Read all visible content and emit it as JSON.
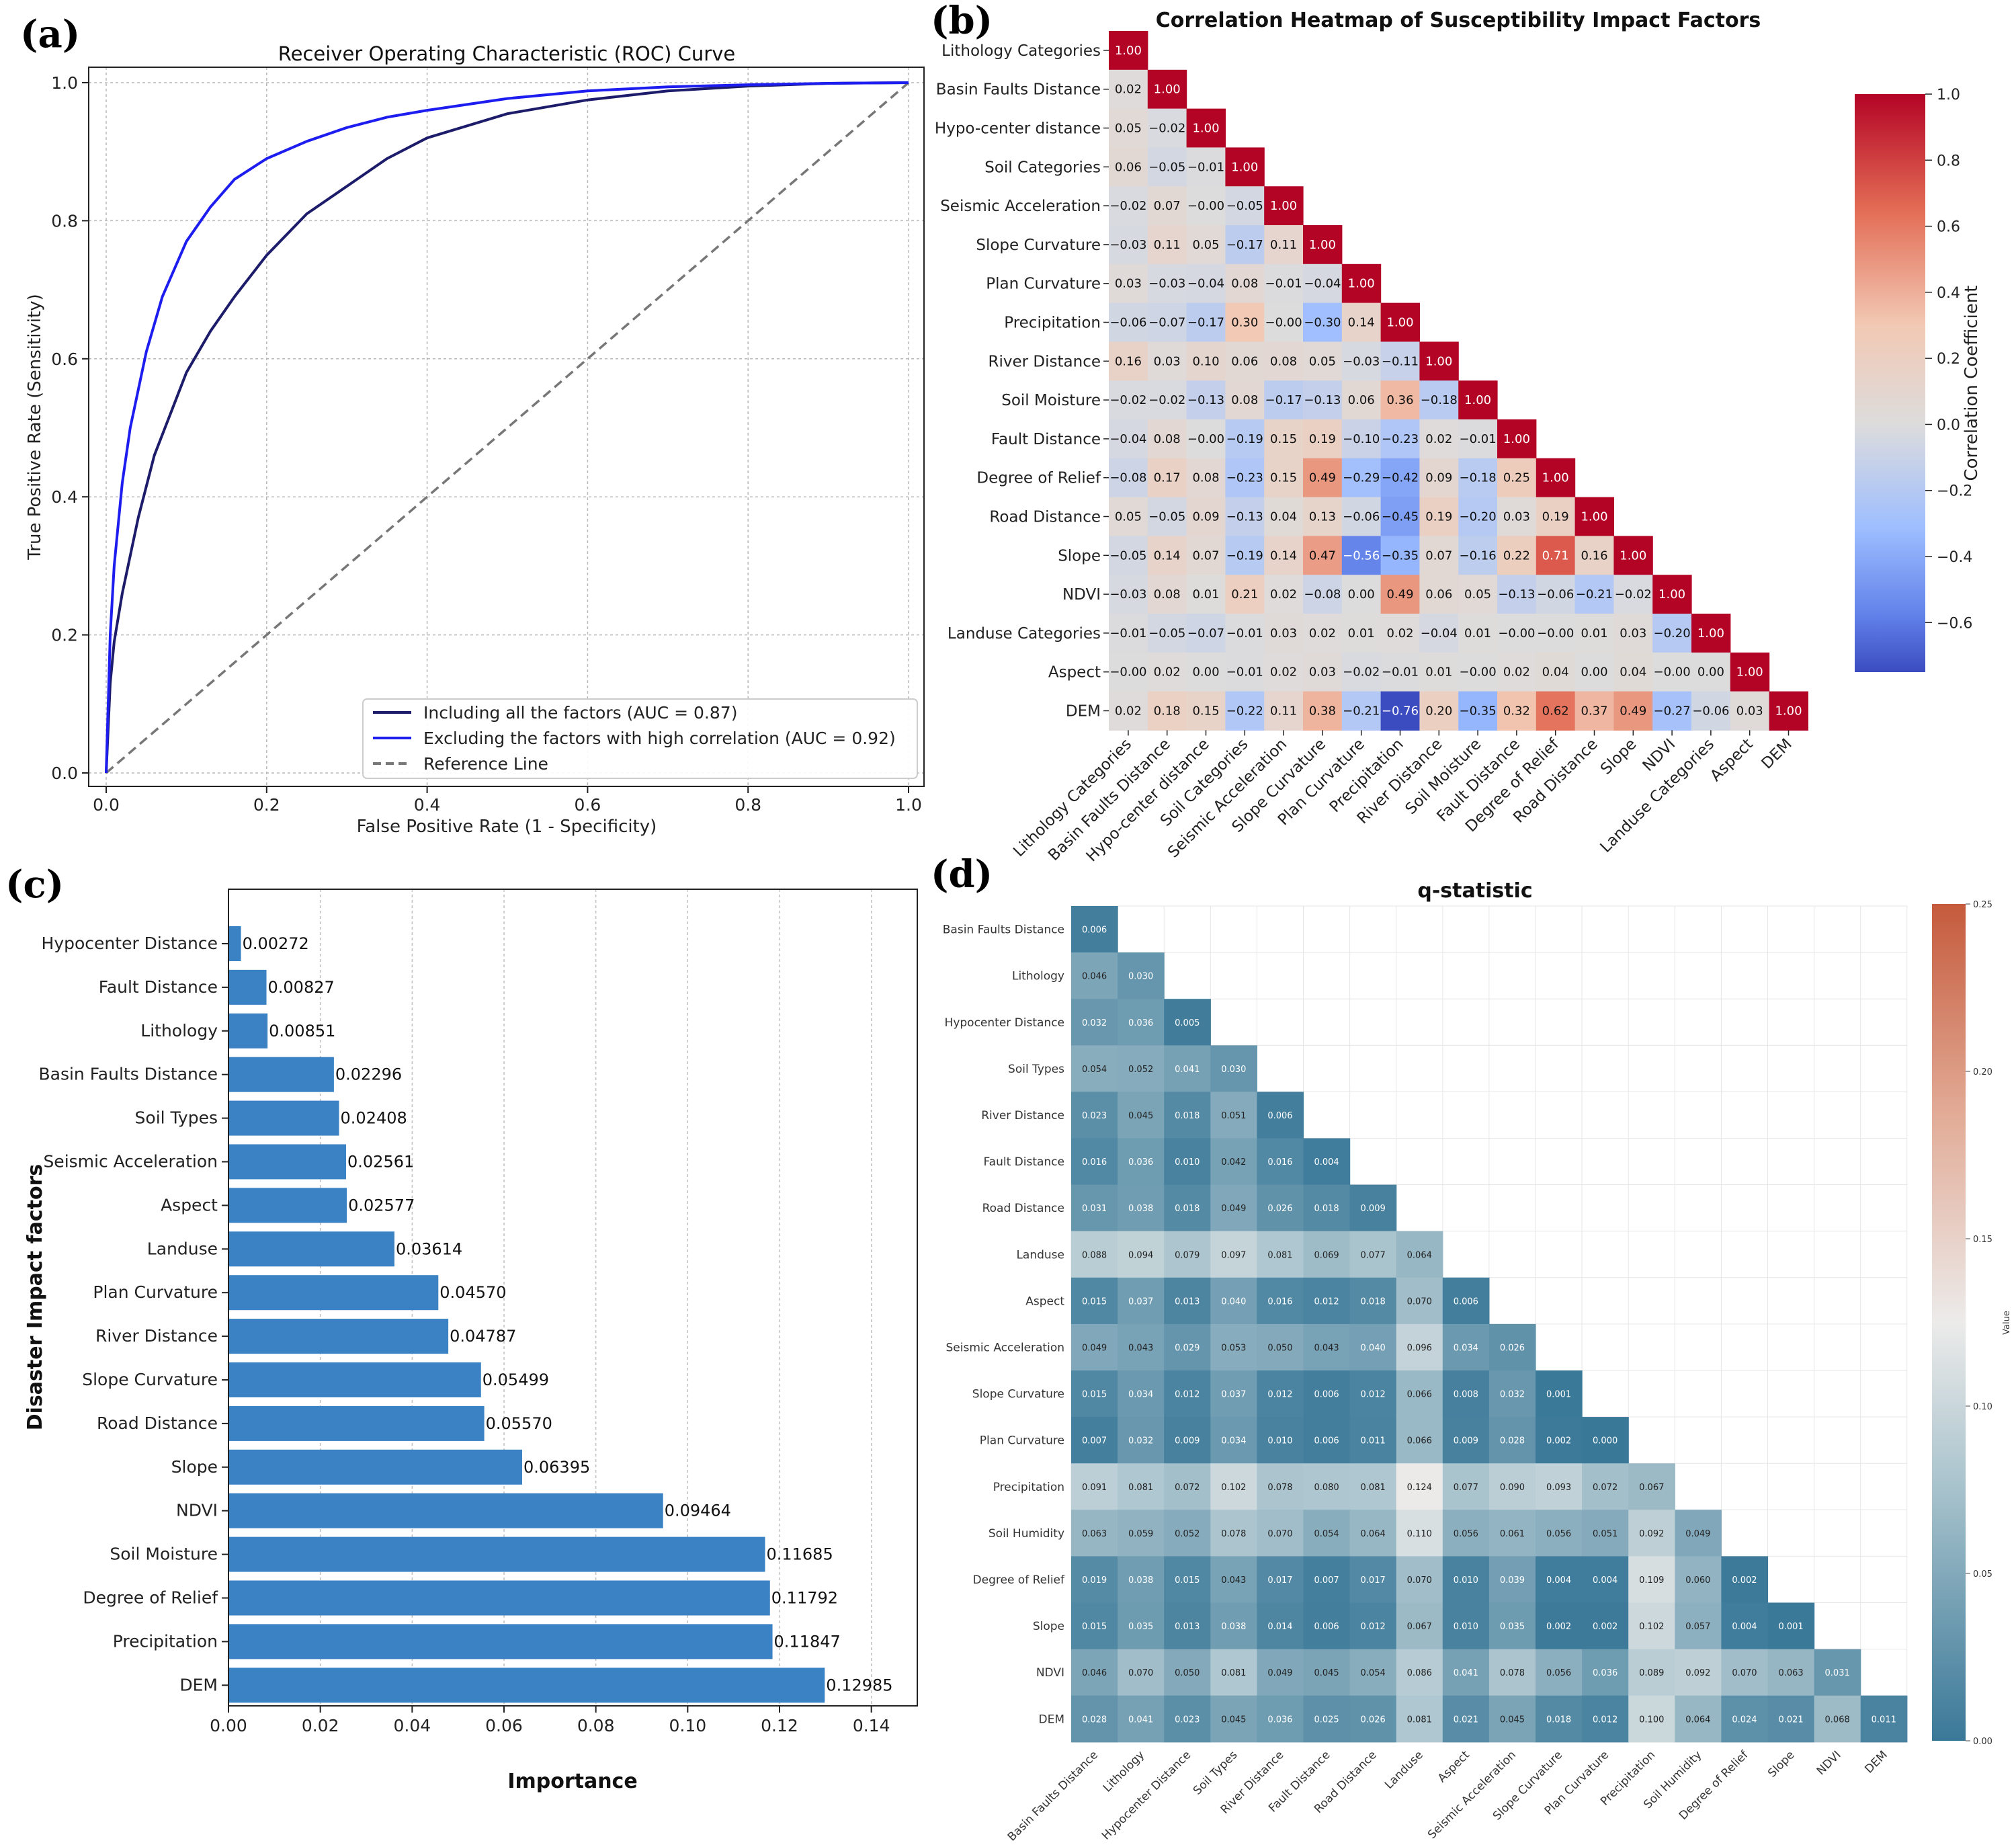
{
  "panels": {
    "a": "(a)",
    "b": "(b)",
    "c": "(c)",
    "d": "(d)"
  },
  "chart_data": [
    {
      "id": "a",
      "type": "line",
      "title": "Receiver Operating Characteristic (ROC) Curve",
      "xlabel": "False Positive Rate (1 - Specificity)",
      "ylabel": "True Positive Rate (Sensitivity)",
      "xlim": [
        0,
        1
      ],
      "ylim": [
        0,
        1
      ],
      "xticks": [
        "0.0",
        "0.2",
        "0.4",
        "0.6",
        "0.8",
        "1.0"
      ],
      "yticks": [
        "0.0",
        "0.2",
        "0.4",
        "0.6",
        "0.8",
        "1.0"
      ],
      "grid": true,
      "legend_position": "bottom-right",
      "series": [
        {
          "name": "Including all the factors (AUC = 0.87)",
          "color": "#1c1c6b",
          "dash": false,
          "x": [
            0,
            0.005,
            0.01,
            0.02,
            0.04,
            0.06,
            0.08,
            0.1,
            0.13,
            0.16,
            0.2,
            0.25,
            0.3,
            0.35,
            0.4,
            0.5,
            0.6,
            0.7,
            0.8,
            0.9,
            1.0
          ],
          "y": [
            0,
            0.13,
            0.19,
            0.26,
            0.37,
            0.46,
            0.52,
            0.58,
            0.64,
            0.69,
            0.75,
            0.81,
            0.85,
            0.89,
            0.92,
            0.955,
            0.975,
            0.988,
            0.995,
            0.999,
            1.0
          ]
        },
        {
          "name": "Excluding the factors with high correlation (AUC = 0.92)",
          "color": "#1d1df0",
          "dash": false,
          "x": [
            0,
            0.005,
            0.01,
            0.02,
            0.03,
            0.05,
            0.07,
            0.1,
            0.13,
            0.16,
            0.2,
            0.25,
            0.3,
            0.35,
            0.4,
            0.5,
            0.6,
            0.7,
            0.8,
            0.9,
            1.0
          ],
          "y": [
            0,
            0.2,
            0.3,
            0.42,
            0.5,
            0.61,
            0.69,
            0.77,
            0.82,
            0.86,
            0.89,
            0.915,
            0.935,
            0.95,
            0.96,
            0.977,
            0.988,
            0.994,
            0.997,
            0.999,
            1.0
          ]
        },
        {
          "name": "Reference Line",
          "color": "#777777",
          "dash": true,
          "x": [
            0,
            1
          ],
          "y": [
            0,
            1
          ]
        }
      ]
    },
    {
      "id": "b",
      "type": "heatmap",
      "title": "Correlation Heatmap of Susceptibility Impact Factors",
      "colorbar_label": "Correlation Coefficient",
      "vmin": -0.75,
      "vmax": 1.0,
      "colorbar_ticks": [
        "1.0",
        "0.8",
        "0.6",
        "0.4",
        "0.2",
        "0.0",
        "−0.2",
        "−0.4",
        "−0.6"
      ],
      "colorbar_tick_values": [
        1.0,
        0.8,
        0.6,
        0.4,
        0.2,
        0.0,
        -0.2,
        -0.4,
        -0.6
      ],
      "labels": [
        "Lithology Categories",
        "Basin Faults Distance",
        "Hypo-center distance",
        "Soil Categories",
        "Seismic Acceleration",
        "Slope Curvature",
        "Plan Curvature",
        "Precipitation",
        "River Distance",
        "Soil Moisture",
        "Fault Distance",
        "Degree of Relief",
        "Road Distance",
        "Slope",
        "NDVI",
        "Landuse Categories",
        "Aspect",
        "DEM"
      ],
      "values": [
        [
          1.0
        ],
        [
          0.02,
          1.0
        ],
        [
          0.05,
          -0.02,
          1.0
        ],
        [
          0.06,
          -0.05,
          -0.01,
          1.0
        ],
        [
          -0.02,
          0.07,
          -0.0,
          -0.05,
          1.0
        ],
        [
          -0.03,
          0.11,
          0.05,
          -0.17,
          0.11,
          1.0
        ],
        [
          0.03,
          -0.03,
          -0.04,
          0.08,
          -0.01,
          -0.04,
          1.0
        ],
        [
          -0.06,
          -0.07,
          -0.17,
          0.3,
          -0.0,
          -0.3,
          0.14,
          1.0
        ],
        [
          0.16,
          0.03,
          0.1,
          0.06,
          0.08,
          0.05,
          -0.03,
          -0.11,
          1.0
        ],
        [
          -0.02,
          -0.02,
          -0.13,
          0.08,
          -0.17,
          -0.13,
          0.06,
          0.36,
          -0.18,
          1.0
        ],
        [
          -0.04,
          0.08,
          -0.0,
          -0.19,
          0.15,
          0.19,
          -0.1,
          -0.23,
          0.02,
          -0.01,
          1.0
        ],
        [
          -0.08,
          0.17,
          0.08,
          -0.23,
          0.15,
          0.49,
          -0.29,
          -0.42,
          0.09,
          -0.18,
          0.25,
          1.0
        ],
        [
          0.05,
          -0.05,
          0.09,
          -0.13,
          0.04,
          0.13,
          -0.06,
          -0.45,
          0.19,
          -0.2,
          0.03,
          0.19,
          1.0
        ],
        [
          -0.05,
          0.14,
          0.07,
          -0.19,
          0.14,
          0.47,
          -0.56,
          -0.35,
          0.07,
          -0.16,
          0.22,
          0.71,
          0.16,
          1.0
        ],
        [
          -0.03,
          0.08,
          0.01,
          0.21,
          0.02,
          -0.08,
          0.0,
          0.49,
          0.06,
          0.05,
          -0.13,
          -0.06,
          -0.21,
          -0.02,
          1.0
        ],
        [
          -0.01,
          -0.05,
          -0.07,
          -0.01,
          0.03,
          0.02,
          0.01,
          0.02,
          -0.04,
          0.01,
          -0.0,
          -0.0,
          0.01,
          0.03,
          -0.2,
          1.0
        ],
        [
          -0.0,
          0.02,
          0.0,
          -0.01,
          0.02,
          0.03,
          -0.02,
          -0.01,
          0.01,
          -0.0,
          0.02,
          0.04,
          0.0,
          0.04,
          -0.0,
          0.0,
          1.0
        ],
        [
          0.02,
          0.18,
          0.15,
          -0.22,
          0.11,
          0.38,
          -0.21,
          -0.76,
          0.2,
          -0.35,
          0.32,
          0.62,
          0.37,
          0.49,
          -0.27,
          -0.06,
          0.03,
          1.0
        ]
      ]
    },
    {
      "id": "c",
      "type": "bar",
      "orientation": "horizontal",
      "xlabel": "Importance",
      "ylabel": "Disaster Impact factors",
      "xlim": [
        0,
        0.15
      ],
      "xticks": [
        "0.00",
        "0.02",
        "0.04",
        "0.06",
        "0.08",
        "0.10",
        "0.12",
        "0.14"
      ],
      "xtick_values": [
        0,
        0.02,
        0.04,
        0.06,
        0.08,
        0.1,
        0.12,
        0.14
      ],
      "grid": true,
      "bar_color": "#3a82c4",
      "categories": [
        "Hypocenter Distance",
        "Fault Distance",
        "Lithology",
        "Basin Faults Distance",
        "Soil Types",
        "Seismic Acceleration",
        "Aspect",
        "Landuse",
        "Plan Curvature",
        "River Distance",
        "Slope Curvature",
        "Road Distance",
        "Slope",
        "NDVI",
        "Soil Moisture",
        "Degree of Relief",
        "Precipitation",
        "DEM"
      ],
      "values": [
        0.00272,
        0.00827,
        0.00851,
        0.02296,
        0.02408,
        0.02561,
        0.02577,
        0.03614,
        0.0457,
        0.04787,
        0.05499,
        0.0557,
        0.06395,
        0.09464,
        0.11685,
        0.11792,
        0.11847,
        0.12985
      ],
      "value_labels": [
        "0.00272",
        "0.00827",
        "0.00851",
        "0.02296",
        "0.02408",
        "0.02561",
        "0.02577",
        "0.03614",
        "0.04570",
        "0.04787",
        "0.05499",
        "0.05570",
        "0.06395",
        "0.09464",
        "0.11685",
        "0.11792",
        "0.11847",
        "0.12985"
      ]
    },
    {
      "id": "d",
      "type": "heatmap",
      "title": "q-statistic",
      "colorbar_label": "Value",
      "vmin": 0.0,
      "vmax": 0.25,
      "colorbar_ticks": [
        "0.25",
        "0.20",
        "0.15",
        "0.10",
        "0.05",
        "0.00"
      ],
      "colorbar_tick_values": [
        0.25,
        0.2,
        0.15,
        0.1,
        0.05,
        0.0
      ],
      "labels": [
        "Basin Faults Distance",
        "Lithology",
        "Hypocenter Distance",
        "Soil Types",
        "River Distance",
        "Fault Distance",
        "Road Distance",
        "Landuse",
        "Aspect",
        "Seismic Acceleration",
        "Slope Curvature",
        "Plan Curvature",
        "Precipitation",
        "Soil Humidity",
        "Degree of Relief",
        "Slope",
        "NDVI",
        "DEM"
      ],
      "values": [
        [
          "0.006"
        ],
        [
          "0.046",
          "0.030"
        ],
        [
          "0.032",
          "0.036",
          "0.005"
        ],
        [
          "0.054",
          "0.052",
          "0.041",
          "0.030"
        ],
        [
          "0.023",
          "0.045",
          "0.018",
          "0.051",
          "0.006"
        ],
        [
          "0.016",
          "0.036",
          "0.010",
          "0.042",
          "0.016",
          "0.004"
        ],
        [
          "0.031",
          "0.038",
          "0.018",
          "0.049",
          "0.026",
          "0.018",
          "0.009"
        ],
        [
          "0.088",
          "0.094",
          "0.079",
          "0.097",
          "0.081",
          "0.069",
          "0.077",
          "0.064"
        ],
        [
          "0.015",
          "0.037",
          "0.013",
          "0.040",
          "0.016",
          "0.012",
          "0.018",
          "0.070",
          "0.006"
        ],
        [
          "0.049",
          "0.043",
          "0.029",
          "0.053",
          "0.050",
          "0.043",
          "0.040",
          "0.096",
          "0.034",
          "0.026"
        ],
        [
          "0.015",
          "0.034",
          "0.012",
          "0.037",
          "0.012",
          "0.006",
          "0.012",
          "0.066",
          "0.008",
          "0.032",
          "0.001"
        ],
        [
          "0.007",
          "0.032",
          "0.009",
          "0.034",
          "0.010",
          "0.006",
          "0.011",
          "0.066",
          "0.009",
          "0.028",
          "0.002",
          "0.000"
        ],
        [
          "0.091",
          "0.081",
          "0.072",
          "0.102",
          "0.078",
          "0.080",
          "0.081",
          "0.124",
          "0.077",
          "0.090",
          "0.093",
          "0.072",
          "0.067"
        ],
        [
          "0.063",
          "0.059",
          "0.052",
          "0.078",
          "0.070",
          "0.054",
          "0.064",
          "0.110",
          "0.056",
          "0.061",
          "0.056",
          "0.051",
          "0.092",
          "0.049"
        ],
        [
          "0.019",
          "0.038",
          "0.015",
          "0.043",
          "0.017",
          "0.007",
          "0.017",
          "0.070",
          "0.010",
          "0.039",
          "0.004",
          "0.004",
          "0.109",
          "0.060",
          "0.002"
        ],
        [
          "0.015",
          "0.035",
          "0.013",
          "0.038",
          "0.014",
          "0.006",
          "0.012",
          "0.067",
          "0.010",
          "0.035",
          "0.002",
          "0.002",
          "0.102",
          "0.057",
          "0.004",
          "0.001"
        ],
        [
          "0.046",
          "0.070",
          "0.050",
          "0.081",
          "0.049",
          "0.045",
          "0.054",
          "0.086",
          "0.041",
          "0.078",
          "0.056",
          "0.036",
          "0.089",
          "0.092",
          "0.070",
          "0.063",
          "0.031"
        ],
        [
          "0.028",
          "0.041",
          "0.023",
          "0.045",
          "0.036",
          "0.025",
          "0.026",
          "0.081",
          "0.021",
          "0.045",
          "0.018",
          "0.012",
          "0.100",
          "0.064",
          "0.024",
          "0.021",
          "0.068",
          "0.011"
        ]
      ]
    }
  ]
}
